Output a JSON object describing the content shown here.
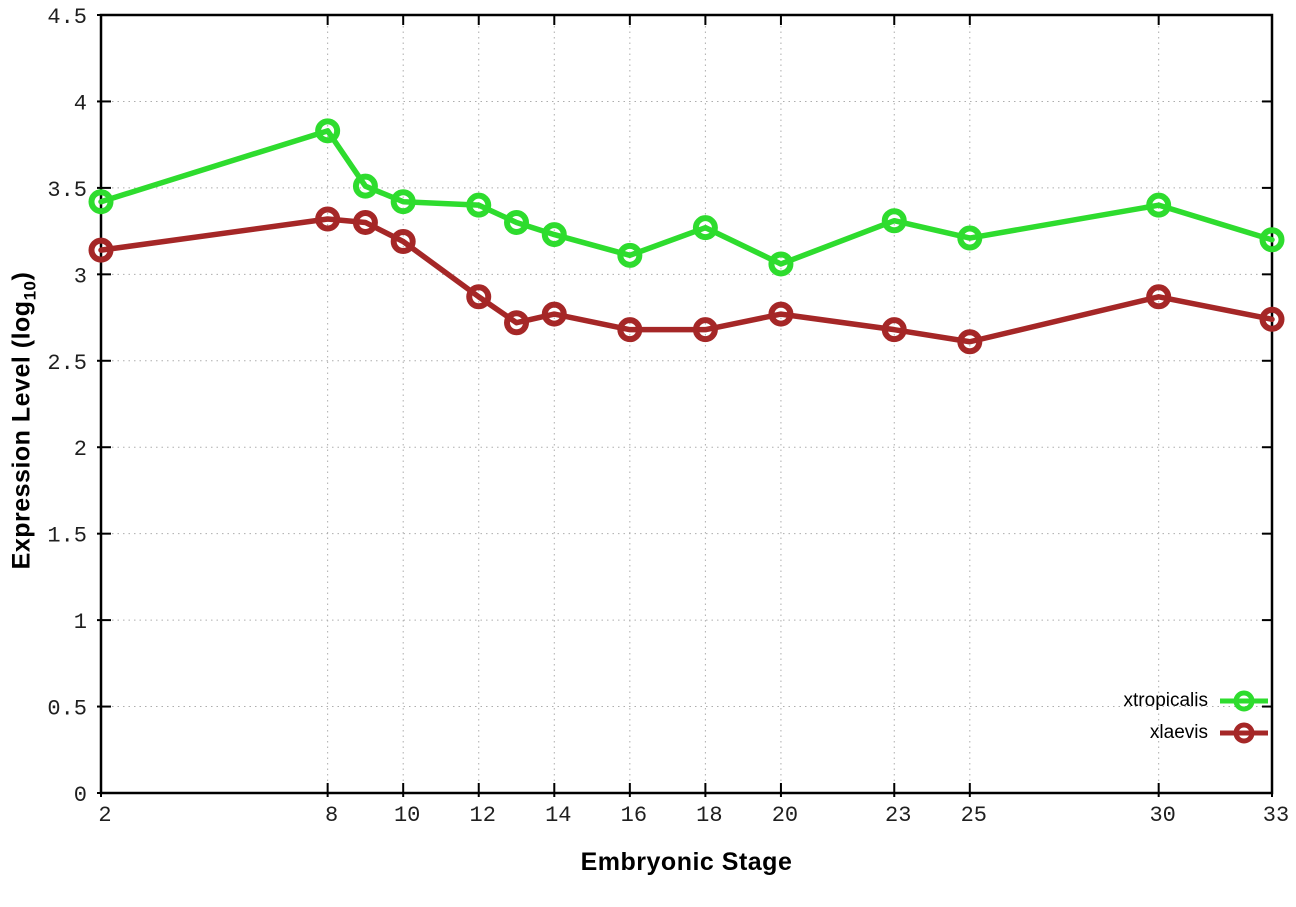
{
  "chart_data": {
    "type": "line",
    "title": "",
    "xlabel": "Embryonic Stage",
    "ylabel": "Expression Level (log10)",
    "ylabel_parts": {
      "prefix": "Expression Level (log",
      "sub": "10",
      "suffix": ")"
    },
    "xlim": [
      2,
      33
    ],
    "ylim": [
      0,
      4.5
    ],
    "grid": true,
    "legend_position": "bottom-right",
    "x_ticks": [
      {
        "value": 2,
        "label": "2"
      },
      {
        "value": 8,
        "label": "8"
      },
      {
        "value": 10,
        "label": "10"
      },
      {
        "value": 12,
        "label": "12"
      },
      {
        "value": 14,
        "label": "14"
      },
      {
        "value": 16,
        "label": "16"
      },
      {
        "value": 18,
        "label": "18"
      },
      {
        "value": 20,
        "label": "20"
      },
      {
        "value": 23,
        "label": "23"
      },
      {
        "value": 25,
        "label": "25"
      },
      {
        "value": 30,
        "label": "30"
      },
      {
        "value": 33,
        "label": "33"
      }
    ],
    "y_ticks": [
      {
        "value": 0,
        "label": "0"
      },
      {
        "value": 0.5,
        "label": "0.5"
      },
      {
        "value": 1,
        "label": "1"
      },
      {
        "value": 1.5,
        "label": "1.5"
      },
      {
        "value": 2,
        "label": "2"
      },
      {
        "value": 2.5,
        "label": "2.5"
      },
      {
        "value": 3,
        "label": "3"
      },
      {
        "value": 3.5,
        "label": "3.5"
      },
      {
        "value": 4,
        "label": "4"
      },
      {
        "value": 4.5,
        "label": "4.5"
      }
    ],
    "series": [
      {
        "name": "xtropicalis",
        "color": "#2edc2e",
        "marker": "open-circle",
        "points": [
          [
            2,
            3.42
          ],
          [
            8,
            3.83
          ],
          [
            9,
            3.51
          ],
          [
            10,
            3.42
          ],
          [
            12,
            3.4
          ],
          [
            13,
            3.3
          ],
          [
            14,
            3.23
          ],
          [
            16,
            3.11
          ],
          [
            18,
            3.27
          ],
          [
            20,
            3.06
          ],
          [
            23,
            3.31
          ],
          [
            25,
            3.21
          ],
          [
            30,
            3.4
          ],
          [
            33,
            3.2
          ]
        ]
      },
      {
        "name": "xlaevis",
        "color": "#a52727",
        "marker": "open-circle",
        "points": [
          [
            2,
            3.14
          ],
          [
            8,
            3.32
          ],
          [
            9,
            3.3
          ],
          [
            10,
            3.19
          ],
          [
            12,
            2.87
          ],
          [
            13,
            2.72
          ],
          [
            14,
            2.77
          ],
          [
            16,
            2.68
          ],
          [
            18,
            2.68
          ],
          [
            20,
            2.77
          ],
          [
            23,
            2.68
          ],
          [
            25,
            2.61
          ],
          [
            30,
            2.87
          ],
          [
            33,
            2.74
          ]
        ]
      }
    ],
    "colors": {
      "axis": "#000000",
      "grid": "#adadad",
      "tick_text": "#1f1f1f"
    }
  }
}
